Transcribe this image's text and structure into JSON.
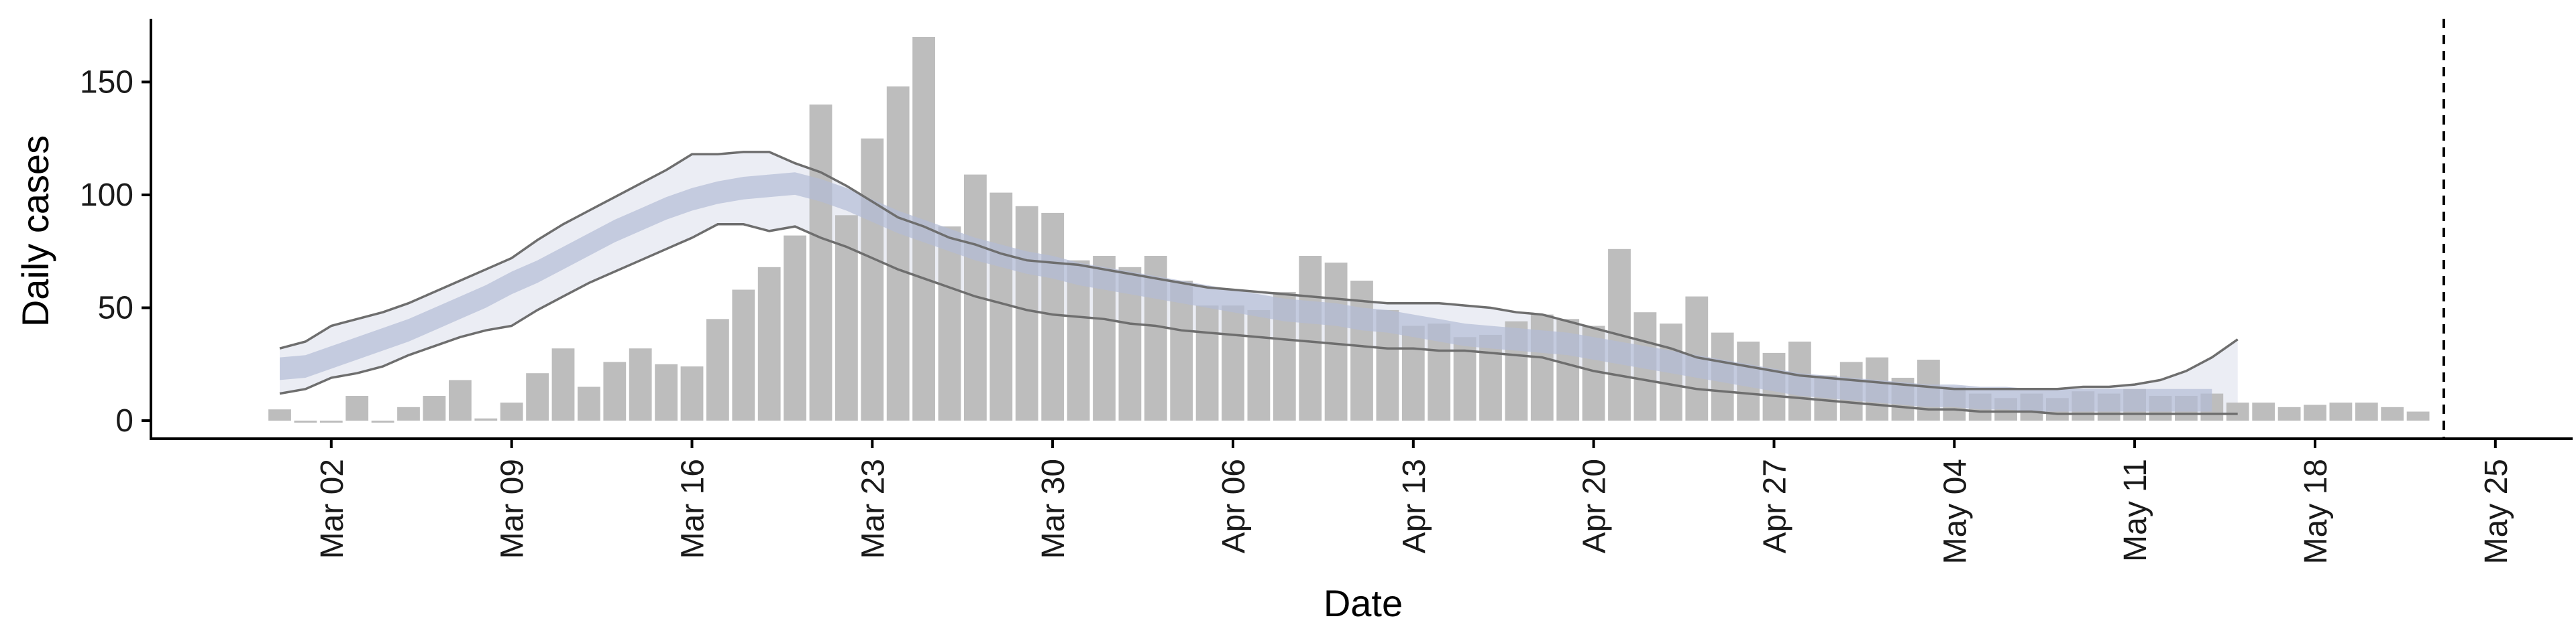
{
  "chart_data": {
    "type": "bar",
    "xlabel": "Date",
    "ylabel": "Daily cases",
    "x_axis": "date",
    "xlim": [
      "2020-02-24",
      "2020-05-28"
    ],
    "ylim": [
      -8,
      178
    ],
    "x_ticks": [
      {
        "date": "2020-03-02",
        "label": "Mar 02"
      },
      {
        "date": "2020-03-09",
        "label": "Mar 09"
      },
      {
        "date": "2020-03-16",
        "label": "Mar 16"
      },
      {
        "date": "2020-03-23",
        "label": "Mar 23"
      },
      {
        "date": "2020-03-30",
        "label": "Mar 30"
      },
      {
        "date": "2020-04-06",
        "label": "Apr 06"
      },
      {
        "date": "2020-04-13",
        "label": "Apr 13"
      },
      {
        "date": "2020-04-20",
        "label": "Apr 20"
      },
      {
        "date": "2020-04-27",
        "label": "Apr 27"
      },
      {
        "date": "2020-05-04",
        "label": "May 04"
      },
      {
        "date": "2020-05-11",
        "label": "May 11"
      },
      {
        "date": "2020-05-18",
        "label": "May 18"
      },
      {
        "date": "2020-05-25",
        "label": "May 25"
      }
    ],
    "y_ticks": [
      0,
      50,
      100,
      150
    ],
    "grid": false,
    "vline_date": "2020-05-23",
    "bars": {
      "color": "#bdbdbd",
      "start_date": "2020-02-29",
      "values": [
        5,
        0,
        0,
        11,
        0,
        6,
        11,
        18,
        1,
        8,
        21,
        32,
        15,
        26,
        32,
        25,
        24,
        45,
        58,
        68,
        82,
        140,
        91,
        125,
        148,
        170,
        86,
        109,
        101,
        95,
        92,
        71,
        73,
        68,
        73,
        62,
        51,
        51,
        49,
        57,
        73,
        70,
        62,
        49,
        42,
        43,
        37,
        38,
        44,
        47,
        45,
        42,
        76,
        48,
        43,
        55,
        39,
        35,
        30,
        35,
        20,
        26,
        28,
        19,
        27,
        15,
        12,
        10,
        12,
        10,
        13,
        12,
        14,
        11,
        11,
        12,
        8,
        8,
        6,
        7,
        8,
        8,
        6,
        4
      ]
    },
    "median_band": {
      "color": "#b4bcd6",
      "start_date": "2020-02-29",
      "values": [
        23,
        24,
        28,
        32,
        36,
        40,
        45,
        50,
        55,
        61,
        66,
        72,
        78,
        84,
        89,
        94,
        98,
        101,
        103,
        104,
        105,
        102,
        98,
        93,
        88,
        84,
        80,
        76,
        73,
        70,
        68,
        65,
        63,
        61,
        59,
        57,
        55,
        53,
        51,
        49,
        48,
        47,
        45,
        44,
        42,
        40,
        38,
        37,
        36,
        35,
        34,
        32,
        30,
        28,
        26,
        24,
        22,
        20,
        18,
        16,
        15,
        14,
        13,
        12,
        11,
        11,
        10,
        10,
        9,
        9,
        9,
        9,
        9,
        9,
        9,
        9
      ],
      "half_width": 5
    },
    "outer_band": {
      "color": "#e8eaf2",
      "line_color": "#6e6e6e",
      "start_date": "2020-02-29",
      "upper": [
        32,
        35,
        42,
        45,
        48,
        52,
        57,
        62,
        67,
        72,
        80,
        87,
        93,
        99,
        105,
        111,
        118,
        118,
        119,
        119,
        114,
        110,
        104,
        97,
        90,
        86,
        81,
        78,
        74,
        71,
        70,
        69,
        67,
        65,
        63,
        61,
        59,
        58,
        57,
        56,
        55,
        54,
        53,
        52,
        52,
        52,
        51,
        50,
        48,
        47,
        44,
        41,
        38,
        35,
        32,
        28,
        26,
        24,
        22,
        20,
        19,
        18,
        17,
        16,
        15,
        14,
        14,
        14,
        14,
        14,
        15,
        15,
        16,
        18,
        22,
        28,
        36
      ],
      "lower": [
        12,
        14,
        19,
        21,
        24,
        29,
        33,
        37,
        40,
        42,
        49,
        55,
        61,
        66,
        71,
        76,
        81,
        87,
        87,
        84,
        86,
        81,
        77,
        72,
        67,
        63,
        59,
        55,
        52,
        49,
        47,
        46,
        45,
        43,
        42,
        40,
        39,
        38,
        37,
        36,
        35,
        34,
        33,
        32,
        32,
        31,
        31,
        30,
        29,
        28,
        25,
        22,
        20,
        18,
        16,
        14,
        13,
        12,
        11,
        10,
        9,
        8,
        7,
        6,
        5,
        5,
        4,
        4,
        4,
        3,
        3,
        3,
        3,
        3,
        3,
        3,
        3
      ]
    }
  }
}
